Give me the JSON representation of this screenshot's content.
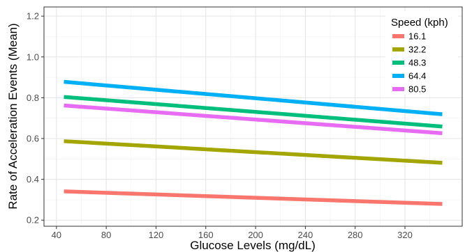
{
  "chart_data": {
    "type": "line",
    "title": "",
    "xlabel": "Glucose Levels (mg/dL)",
    "ylabel": "Rate of Acceleration Events (Mean)",
    "xlim": [
      30,
      366
    ],
    "ylim": [
      0.17,
      1.245
    ],
    "x_ticks": [
      40,
      80,
      120,
      160,
      200,
      240,
      280,
      320
    ],
    "y_ticks": [
      0.2,
      0.4,
      0.6,
      0.8,
      1.0,
      1.2
    ],
    "y_tick_labels": [
      "0.2",
      "0.4",
      "0.6",
      "0.8",
      "1.0",
      "1.2"
    ],
    "x_minor_ticks": [
      60,
      100,
      140,
      180,
      220,
      260,
      300,
      340
    ],
    "y_minor_ticks": [
      0.3,
      0.5,
      0.7,
      0.9,
      1.1
    ],
    "grid": true,
    "legend": {
      "title": "Speed (kph)",
      "placement": "top-right"
    },
    "series": [
      {
        "name": "16.1",
        "color": "#F8766D",
        "x": [
          46,
          350
        ],
        "y": [
          0.341,
          0.279
        ]
      },
      {
        "name": "32.2",
        "color": "#A3A500",
        "x": [
          46,
          350
        ],
        "y": [
          0.587,
          0.481
        ]
      },
      {
        "name": "48.3",
        "color": "#00BF7D",
        "x": [
          46,
          350
        ],
        "y": [
          0.804,
          0.659
        ]
      },
      {
        "name": "64.4",
        "color": "#00B0F6",
        "x": [
          46,
          350
        ],
        "y": [
          0.878,
          0.719
        ]
      },
      {
        "name": "80.5",
        "color": "#E76BF3",
        "x": [
          46,
          350
        ],
        "y": [
          0.762,
          0.626
        ]
      }
    ]
  }
}
